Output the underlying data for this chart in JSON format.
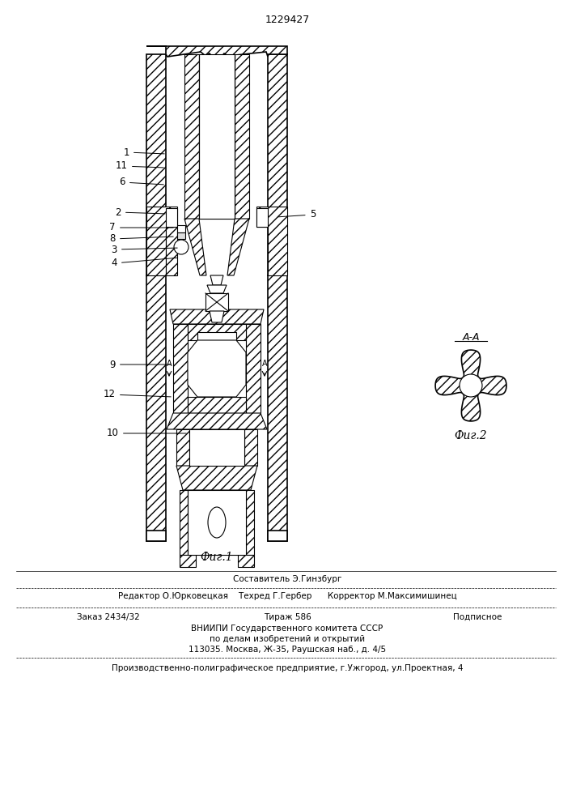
{
  "patent_number": "1229427",
  "fig1_label": "Фиг.1",
  "fig2_label": "Фиг.2",
  "section_label": "А-А",
  "background_color": "#ffffff",
  "line_color": "#000000",
  "footer_line0": "Составитель Э.Гинзбург",
  "footer_line1": "Редактор О.Юрковецкая    Техред Г.Гербер      Корректор М.Максимишинец",
  "footer_line2": "Заказ 2434/32           Тираж 586            Подписное",
  "footer_line3": "ВНИИПИ Государственного комитета СССР",
  "footer_line4": "по делам изобретений и открытий",
  "footer_line5": "113035. Москва, Ж-35, Раушская наб., д. 4/5",
  "footer_line6": "Производственно-полиграфическое предприятие, г.Ужгород, ул.Проектная, 4",
  "fig_width": 7.07,
  "fig_height": 10.0,
  "dpi": 100
}
